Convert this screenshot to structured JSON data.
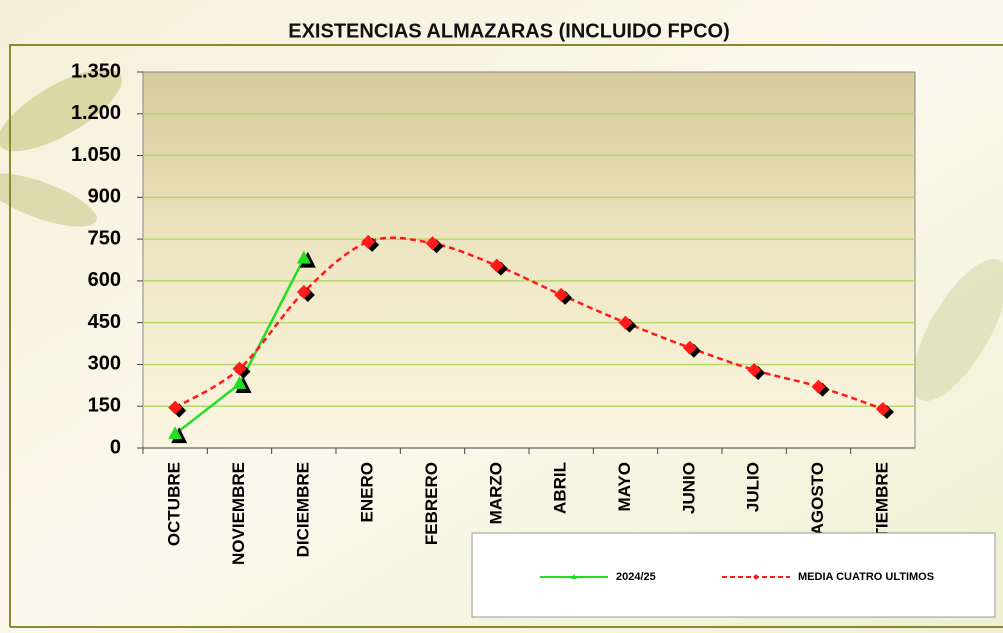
{
  "chart_data": {
    "type": "line",
    "title": "EXISTENCIAS ALMAZARAS (INCLUIDO FPCO)",
    "categories": [
      "OCTUBRE",
      "NOVIEMBRE",
      "DICIEMBRE",
      "ENERO",
      "FEBRERO",
      "MARZO",
      "ABRIL",
      "MAYO",
      "JUNIO",
      "JULIO",
      "AGOSTO",
      "SEPTIEMBRE"
    ],
    "series": [
      {
        "name": "2024/25",
        "color": "#22dd22",
        "values": [
          50,
          230,
          680,
          null,
          null,
          null,
          null,
          null,
          null,
          null,
          null,
          null
        ]
      },
      {
        "name": "MEDIA CUATRO ULTIMOS",
        "color": "#ff1a1a",
        "values": [
          145,
          285,
          560,
          740,
          735,
          655,
          550,
          450,
          360,
          280,
          220,
          140
        ]
      }
    ],
    "ylim": [
      0,
      1350
    ],
    "yticks": [
      0,
      150,
      300,
      450,
      600,
      750,
      900,
      {
        "value": 1050,
        "label": "1.050"
      },
      {
        "value": 1200,
        "label": "1.200"
      },
      {
        "value": 1350,
        "label": "1.350"
      }
    ],
    "grid": true
  }
}
